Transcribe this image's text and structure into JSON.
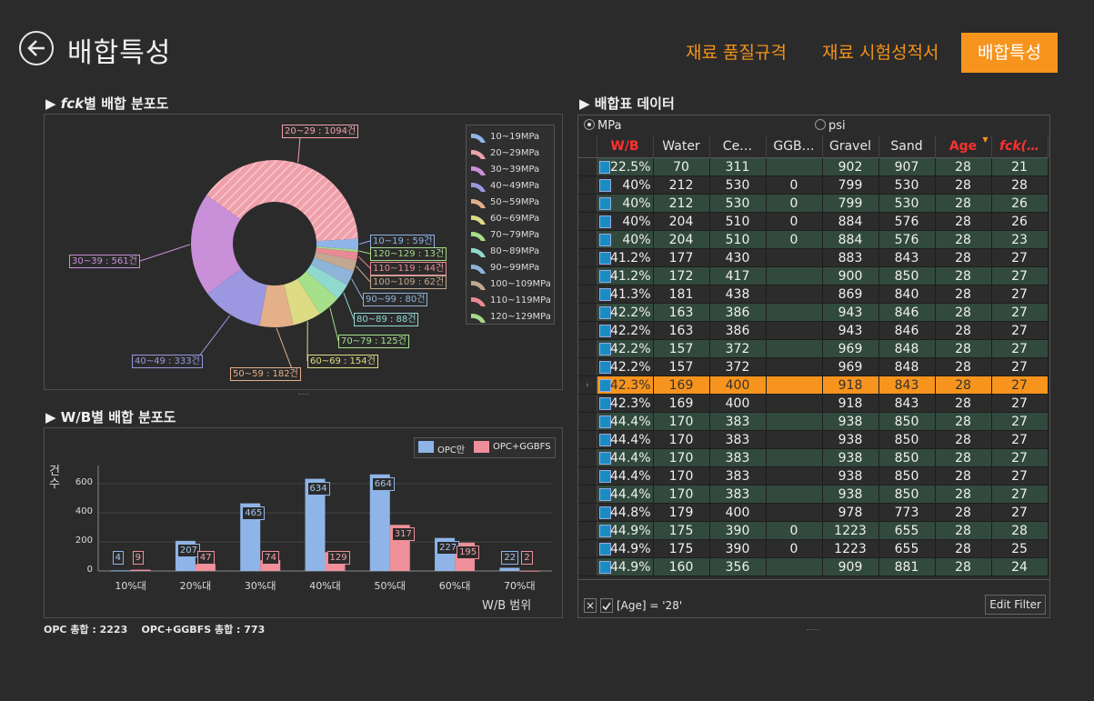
{
  "header": {
    "title": "배합특성",
    "tabs": [
      {
        "label": "재료 품질규격",
        "active": false
      },
      {
        "label": "재료 시험성적서",
        "active": false
      },
      {
        "label": "배합특성",
        "active": true
      }
    ]
  },
  "fck_section": {
    "title_prefix": "▶ ",
    "title_italic": "fck",
    "title_rest": "별 배합 분포도"
  },
  "wb_section": {
    "title": "▶ W/B별 배합 분포도"
  },
  "data_section": {
    "title": "▶ 배합표 데이터"
  },
  "colors": {
    "accent": "#f7941d",
    "grid_odd": "#324a3e",
    "highlight_red": "#ff3030"
  },
  "chart_data": [
    {
      "type": "pie",
      "donut": true,
      "title": "fck별 배합 분포도",
      "slices": [
        {
          "label": "10~19MPa",
          "short": "10~19",
          "value": 59,
          "color": "#8fb4e8"
        },
        {
          "label": "20~29MPa",
          "short": "20~29",
          "value": 1094,
          "color": "#f0a0aa",
          "hatched": true
        },
        {
          "label": "30~39MPa",
          "short": "30~39",
          "value": 561,
          "color": "#c98fd9"
        },
        {
          "label": "40~49MPa",
          "short": "40~49",
          "value": 333,
          "color": "#9b97e0"
        },
        {
          "label": "50~59MPa",
          "short": "50~59",
          "value": 182,
          "color": "#e3b08a"
        },
        {
          "label": "60~69MPa",
          "short": "60~69",
          "value": 154,
          "color": "#dddb84"
        },
        {
          "label": "70~79MPa",
          "short": "70~79",
          "value": 125,
          "color": "#a6e08a"
        },
        {
          "label": "80~89MPa",
          "short": "80~89",
          "value": 88,
          "color": "#8fd9cf"
        },
        {
          "label": "90~99MPa",
          "short": "90~99",
          "value": 80,
          "color": "#8fb4d9"
        },
        {
          "label": "100~109MPa",
          "short": "100~109",
          "value": 62,
          "color": "#c2a890"
        },
        {
          "label": "110~119MPa",
          "short": "110~119",
          "value": 44,
          "color": "#e88a96"
        },
        {
          "label": "120~129MPa",
          "short": "120~129",
          "value": 13,
          "color": "#a6d98a"
        }
      ],
      "label_suffix": "건"
    },
    {
      "type": "bar",
      "title": "W/B별 배합 분포도",
      "categories": [
        "10%대",
        "20%대",
        "30%대",
        "40%대",
        "50%대",
        "60%대",
        "70%대"
      ],
      "series": [
        {
          "name": "OPC만",
          "values": [
            4,
            207,
            465,
            634,
            664,
            227,
            22
          ],
          "color": "#8fb4e8"
        },
        {
          "name": "OPC+GGBFS",
          "values": [
            9,
            47,
            74,
            129,
            317,
            195,
            2
          ],
          "color": "#ee8f9a"
        }
      ],
      "ylabel": "건수",
      "xlabel": "W/B 범위",
      "ylim": [
        0,
        700
      ],
      "yticks": [
        0,
        200,
        400,
        600
      ]
    }
  ],
  "totals": {
    "text": "OPC 총합 : 2223    OPC+GGBFS 총합 : 773"
  },
  "grid": {
    "units": [
      {
        "label": "MPa",
        "selected": true
      },
      {
        "label": "psi",
        "selected": false
      }
    ],
    "columns": [
      "W/B",
      "Water",
      "Ce…",
      "GGB…",
      "Gravel",
      "Sand",
      "Age",
      "fck(…"
    ],
    "rows": [
      {
        "wb": "22.5%",
        "wbv": 22.5,
        "cells": [
          "70",
          "311",
          "",
          "902",
          "907",
          "28",
          "21"
        ]
      },
      {
        "wb": "40%",
        "wbv": 40,
        "cells": [
          "212",
          "530",
          "0",
          "799",
          "530",
          "28",
          "28"
        ]
      },
      {
        "wb": "40%",
        "wbv": 40,
        "cells": [
          "212",
          "530",
          "0",
          "799",
          "530",
          "28",
          "26"
        ]
      },
      {
        "wb": "40%",
        "wbv": 40,
        "cells": [
          "204",
          "510",
          "0",
          "884",
          "576",
          "28",
          "26"
        ]
      },
      {
        "wb": "40%",
        "wbv": 40,
        "cells": [
          "204",
          "510",
          "0",
          "884",
          "576",
          "28",
          "23"
        ]
      },
      {
        "wb": "41.2%",
        "wbv": 41.2,
        "cells": [
          "177",
          "430",
          "",
          "883",
          "843",
          "28",
          "27"
        ]
      },
      {
        "wb": "41.2%",
        "wbv": 41.2,
        "cells": [
          "172",
          "417",
          "",
          "900",
          "850",
          "28",
          "27"
        ]
      },
      {
        "wb": "41.3%",
        "wbv": 41.3,
        "cells": [
          "181",
          "438",
          "",
          "869",
          "840",
          "28",
          "27"
        ]
      },
      {
        "wb": "42.2%",
        "wbv": 42.2,
        "cells": [
          "163",
          "386",
          "",
          "943",
          "846",
          "28",
          "27"
        ]
      },
      {
        "wb": "42.2%",
        "wbv": 42.2,
        "cells": [
          "163",
          "386",
          "",
          "943",
          "846",
          "28",
          "27"
        ]
      },
      {
        "wb": "42.2%",
        "wbv": 42.2,
        "cells": [
          "157",
          "372",
          "",
          "969",
          "848",
          "28",
          "27"
        ]
      },
      {
        "wb": "42.2%",
        "wbv": 42.2,
        "cells": [
          "157",
          "372",
          "",
          "969",
          "848",
          "28",
          "27"
        ]
      },
      {
        "wb": "42.3%",
        "wbv": 42.3,
        "cells": [
          "169",
          "400",
          "",
          "918",
          "843",
          "28",
          "27"
        ],
        "selected": true
      },
      {
        "wb": "42.3%",
        "wbv": 42.3,
        "cells": [
          "169",
          "400",
          "",
          "918",
          "843",
          "28",
          "27"
        ]
      },
      {
        "wb": "44.4%",
        "wbv": 44.4,
        "cells": [
          "170",
          "383",
          "",
          "938",
          "850",
          "28",
          "27"
        ]
      },
      {
        "wb": "44.4%",
        "wbv": 44.4,
        "cells": [
          "170",
          "383",
          "",
          "938",
          "850",
          "28",
          "27"
        ]
      },
      {
        "wb": "44.4%",
        "wbv": 44.4,
        "cells": [
          "170",
          "383",
          "",
          "938",
          "850",
          "28",
          "27"
        ]
      },
      {
        "wb": "44.4%",
        "wbv": 44.4,
        "cells": [
          "170",
          "383",
          "",
          "938",
          "850",
          "28",
          "27"
        ]
      },
      {
        "wb": "44.4%",
        "wbv": 44.4,
        "cells": [
          "170",
          "383",
          "",
          "938",
          "850",
          "28",
          "27"
        ]
      },
      {
        "wb": "44.8%",
        "wbv": 44.8,
        "cells": [
          "179",
          "400",
          "",
          "978",
          "773",
          "28",
          "27"
        ]
      },
      {
        "wb": "44.9%",
        "wbv": 44.9,
        "cells": [
          "175",
          "390",
          "0",
          "1223",
          "655",
          "28",
          "28"
        ]
      },
      {
        "wb": "44.9%",
        "wbv": 44.9,
        "cells": [
          "175",
          "390",
          "0",
          "1223",
          "655",
          "28",
          "25"
        ]
      },
      {
        "wb": "44.9%",
        "wbv": 44.9,
        "cells": [
          "160",
          "356",
          "",
          "909",
          "881",
          "28",
          "24"
        ]
      }
    ],
    "filter_text": "[Age] = '28'",
    "edit_filter_label": "Edit Filter",
    "filter_close": "×"
  }
}
